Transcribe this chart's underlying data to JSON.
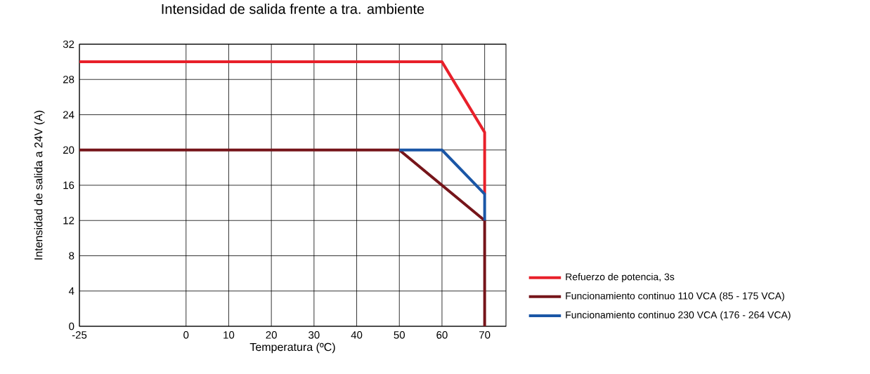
{
  "chart_data": {
    "type": "line",
    "title": "Intensidad de salida frente a tra. ambiente",
    "xlabel": "Temperatura (ºC)",
    "ylabel": "Intensidad de salida a 24V (A)",
    "xlim": [
      -25,
      75
    ],
    "ylim": [
      0,
      32
    ],
    "xticks": [
      -25,
      0,
      10,
      20,
      30,
      40,
      50,
      60,
      70
    ],
    "yticks": [
      0,
      4,
      8,
      12,
      16,
      20,
      24,
      28,
      32
    ],
    "grid": true,
    "legend": "right",
    "line_style": "solid",
    "marker": "none",
    "series": [
      {
        "name": "Refuerzo de potencia, 3s",
        "color": "#e8202a",
        "x": [
          -25,
          60,
          70,
          70
        ],
        "values": [
          30,
          30,
          22,
          15
        ]
      },
      {
        "name": "Funcionamiento continuo 110 VCA (85 - 175 VCA)",
        "color": "#76151a",
        "x": [
          -25,
          50,
          70,
          70
        ],
        "values": [
          20,
          20,
          12,
          0
        ]
      },
      {
        "name": "Funcionamiento continuo 230 VCA (176 - 264 VCA)",
        "color": "#1a56a6",
        "x": [
          50,
          60,
          70,
          70
        ],
        "values": [
          20,
          20,
          15,
          12
        ]
      }
    ]
  }
}
